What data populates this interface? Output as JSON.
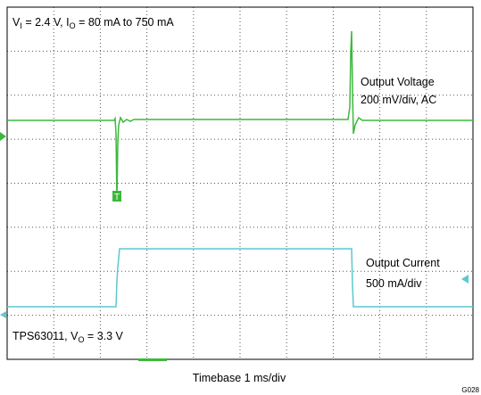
{
  "annotations": {
    "conditions": [
      "V",
      "I",
      " = 2.4 V, I",
      "O",
      " = 80 mA to 750 mA"
    ],
    "voltage_label": "Output Voltage",
    "voltage_scale": "200 mV/div, AC",
    "current_label": "Output Current",
    "current_scale": "500 mA/div",
    "device": [
      "TPS63011, V",
      "O",
      " = 3.3 V"
    ],
    "timebase": "Timebase 1 ms/div",
    "figure_id": "G028"
  }
}
